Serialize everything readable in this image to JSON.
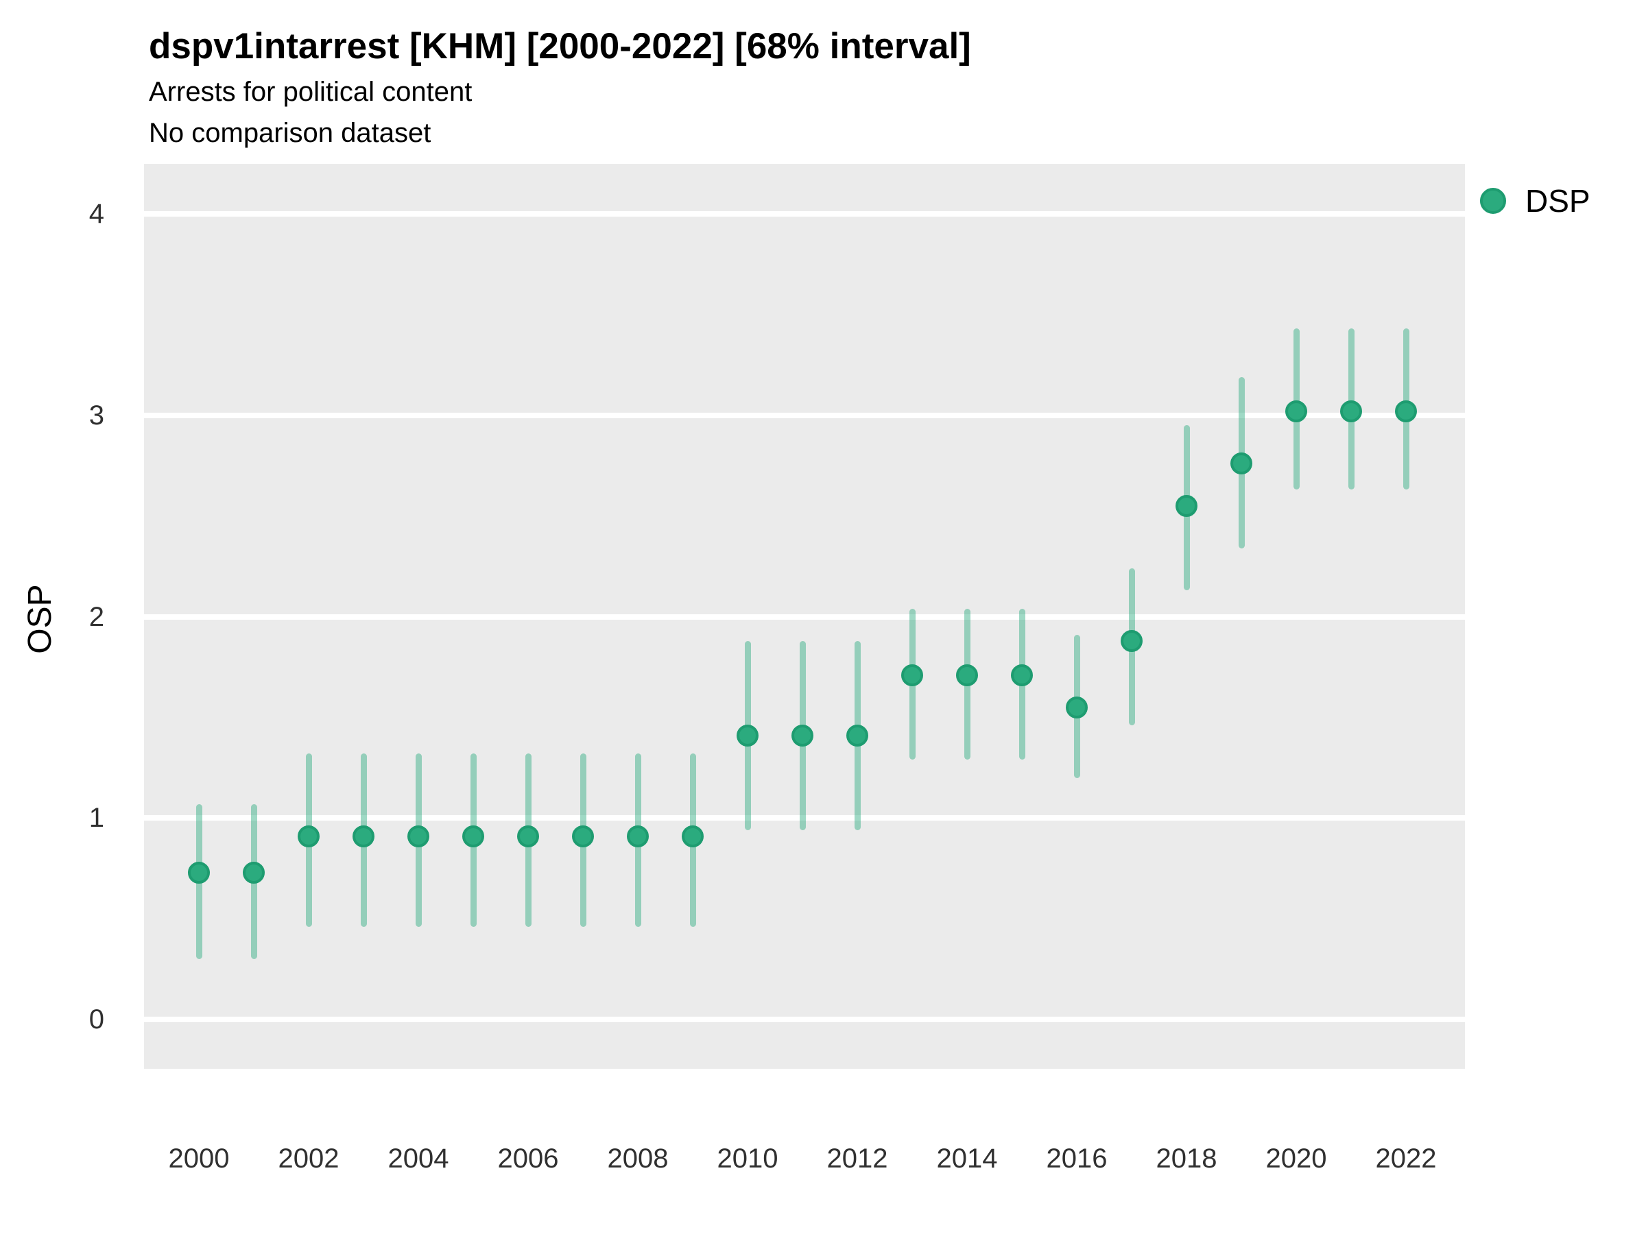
{
  "title": "dspv1intarrest [KHM] [2000-2022] [68% interval]",
  "subtitle1": "Arrests for political content",
  "subtitle2": "No comparison dataset",
  "legend": {
    "label": "DSP",
    "marker": "dot-icon"
  },
  "colors": {
    "point_fill": "#2bab7e",
    "point_stroke": "#1e9c70",
    "interval_bar": "rgba(43,171,126,0.45)",
    "panel_background": "#EBEBEB",
    "gridline": "#ffffff",
    "tick_text": "#303030",
    "text": "#000000"
  },
  "chart_data": {
    "type": "scatter",
    "title": "dspv1intarrest [KHM] [2000-2022] [68% interval]",
    "subtitle": [
      "Arrests for political content",
      "No comparison dataset"
    ],
    "xlabel": "",
    "ylabel": "OSP",
    "ylim": [
      0,
      4
    ],
    "yticks": [
      0,
      1,
      2,
      3,
      4
    ],
    "xticks": [
      2000,
      2002,
      2004,
      2006,
      2008,
      2010,
      2012,
      2014,
      2016,
      2018,
      2020,
      2022
    ],
    "grid": "white major horizontal gridlines on gray panel",
    "legend_position": "right-top",
    "interval_level": "68%",
    "series": [
      {
        "name": "DSP",
        "x": [
          2000,
          2001,
          2002,
          2003,
          2004,
          2005,
          2006,
          2007,
          2008,
          2009,
          2010,
          2011,
          2012,
          2013,
          2014,
          2015,
          2016,
          2017,
          2018,
          2019,
          2020,
          2021,
          2022
        ],
        "y": [
          0.73,
          0.73,
          0.91,
          0.91,
          0.91,
          0.91,
          0.91,
          0.91,
          0.91,
          0.91,
          1.41,
          1.41,
          1.41,
          1.71,
          1.71,
          1.71,
          1.55,
          1.88,
          2.55,
          2.76,
          3.02,
          3.02,
          3.02
        ],
        "ci_low": [
          0.3,
          0.3,
          0.46,
          0.46,
          0.46,
          0.46,
          0.46,
          0.46,
          0.46,
          0.46,
          0.94,
          0.94,
          0.94,
          1.29,
          1.29,
          1.29,
          1.2,
          1.46,
          2.13,
          2.34,
          2.63,
          2.63,
          2.63
        ],
        "ci_high": [
          1.07,
          1.07,
          1.32,
          1.32,
          1.32,
          1.32,
          1.32,
          1.32,
          1.32,
          1.32,
          1.88,
          1.88,
          1.88,
          2.04,
          2.04,
          2.04,
          1.91,
          2.24,
          2.95,
          3.19,
          3.43,
          3.43,
          3.43
        ]
      }
    ]
  }
}
